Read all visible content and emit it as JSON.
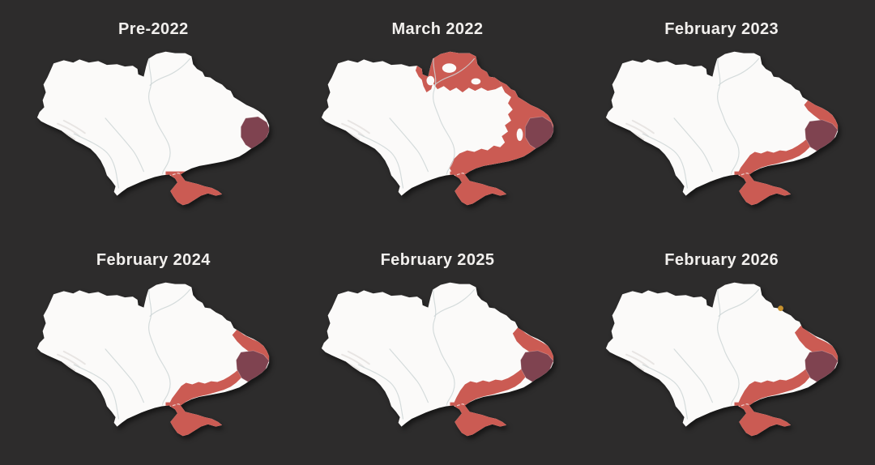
{
  "page": {
    "background_color": "#2d2c2c",
    "title_color": "#f2f0ee",
    "description": "Six small-multiple maps of Ukraine showing occupied territory at different dates"
  },
  "legend_colors": {
    "land": "#fbfaf9",
    "occupied_red": "#cb5b53",
    "occupied_dark": "#7f4350",
    "incursion_orange": "#c8922f",
    "river": "#ccd5d6",
    "terrain_shading": "#d8d4d1",
    "lagoon_line": "#f5ece9"
  },
  "maps": [
    {
      "id": "pre-2022",
      "title": "Pre-2022",
      "overlays": [
        {
          "region": "crimea",
          "color": "occupied_red"
        },
        {
          "region": "donbas-core",
          "color": "occupied_dark"
        }
      ]
    },
    {
      "id": "march-2022",
      "title": "March 2022",
      "overlays": [
        {
          "region": "north-band-march-2022",
          "color": "occupied_red"
        },
        {
          "region": "east-south-march-2022",
          "color": "occupied_red"
        },
        {
          "region": "crimea",
          "color": "occupied_red"
        },
        {
          "region": "donbas-core",
          "color": "occupied_dark"
        },
        {
          "region": "unoccupied-pockets-march-2022",
          "color": "land"
        }
      ]
    },
    {
      "id": "february-2023",
      "title": "February 2023",
      "overlays": [
        {
          "region": "east-band-2023",
          "color": "occupied_red"
        },
        {
          "region": "south-band-2023",
          "color": "occupied_red"
        },
        {
          "region": "crimea",
          "color": "occupied_red"
        },
        {
          "region": "donbas-core-late",
          "color": "occupied_dark"
        }
      ]
    },
    {
      "id": "february-2024",
      "title": "February 2024",
      "overlays": [
        {
          "region": "east-band-2024",
          "color": "occupied_red"
        },
        {
          "region": "south-band-2023",
          "color": "occupied_red"
        },
        {
          "region": "crimea",
          "color": "occupied_red"
        },
        {
          "region": "donbas-core-late",
          "color": "occupied_dark"
        }
      ]
    },
    {
      "id": "february-2025",
      "title": "February 2025",
      "overlays": [
        {
          "region": "east-band-2025",
          "color": "occupied_red"
        },
        {
          "region": "south-band-2025",
          "color": "occupied_red"
        },
        {
          "region": "crimea",
          "color": "occupied_red"
        },
        {
          "region": "donbas-core-late",
          "color": "occupied_dark"
        }
      ]
    },
    {
      "id": "february-2026",
      "title": "February 2026",
      "overlays": [
        {
          "region": "east-band-2026",
          "color": "occupied_red"
        },
        {
          "region": "south-band-2025",
          "color": "occupied_red"
        },
        {
          "region": "crimea",
          "color": "occupied_red"
        },
        {
          "region": "donbas-core-late",
          "color": "occupied_dark"
        },
        {
          "region": "sumy-border-incursion",
          "color": "incursion_orange"
        }
      ]
    }
  ]
}
